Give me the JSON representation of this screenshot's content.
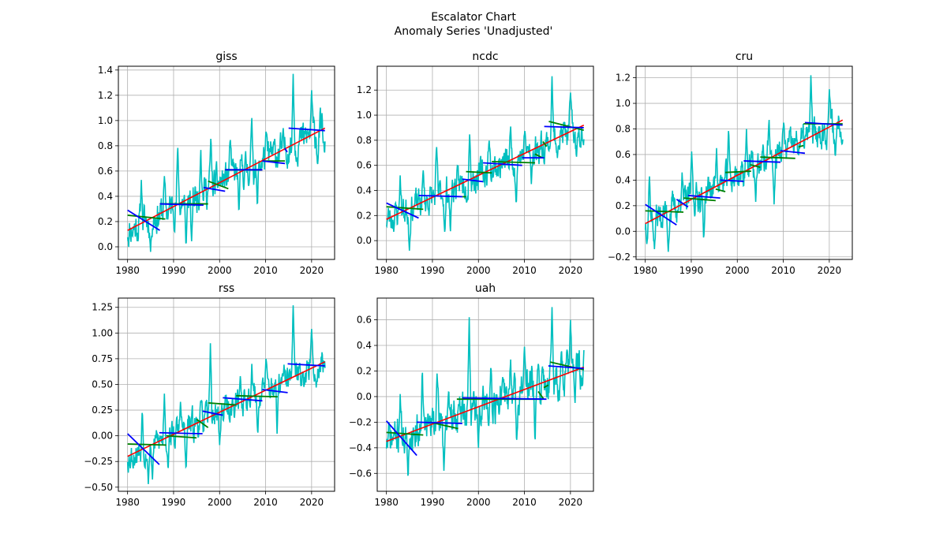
{
  "figure": {
    "title_line1": "Escalator Chart",
    "title_line2": "Anomaly Series 'Unadjusted'"
  },
  "chart_data": [
    {
      "type": "line",
      "title": "giss",
      "xlabel": "",
      "ylabel": "",
      "xlim": [
        1978,
        2025
      ],
      "ylim": [
        -0.1,
        1.43
      ],
      "xticks": [
        1980,
        1990,
        2000,
        2010,
        2020
      ],
      "yticks": [
        0.0,
        0.2,
        0.4,
        0.6,
        0.8,
        1.0,
        1.2,
        1.4
      ],
      "ytick_labels": [
        "0.0",
        "0.2",
        "0.4",
        "0.6",
        "0.8",
        "1.0",
        "1.2",
        "1.4"
      ],
      "grid": true,
      "colors": {
        "anomaly": "#00bfbf",
        "trend": "#ff0000",
        "step_blue": "#0000ff",
        "step_green": "#008000"
      },
      "anomaly": {
        "start": 1980.0,
        "end": 2022.9,
        "trend_start": 0.13,
        "trend_end": 0.94,
        "spread": 0.13,
        "seed": 11,
        "peaks": [
          [
            1983.0,
            0.53
          ],
          [
            1988.0,
            0.56
          ],
          [
            1990.9,
            0.8
          ],
          [
            1995.9,
            0.79
          ],
          [
            1998.1,
            0.87
          ],
          [
            2002.3,
            0.88
          ],
          [
            2007.0,
            1.02
          ],
          [
            2010.1,
            0.92
          ],
          [
            2016.0,
            1.37
          ],
          [
            2020.0,
            1.24
          ]
        ],
        "troughs": [
          [
            1985.0,
            -0.04
          ],
          [
            1992.7,
            -0.01
          ],
          [
            1993.9,
            0.02
          ],
          [
            2008.2,
            0.3
          ],
          [
            2004.2,
            0.26
          ],
          [
            2021.3,
            0.64
          ],
          [
            2022.8,
            0.72
          ]
        ]
      },
      "trend": [
        [
          1980.0,
          0.13
        ],
        [
          2022.9,
          0.94
        ]
      ],
      "blue_segments": [
        [
          [
            1980.0,
            0.29
          ],
          [
            1987.0,
            0.13
          ]
        ],
        [
          [
            1987.0,
            0.34
          ],
          [
            1996.5,
            0.33
          ]
        ],
        [
          [
            1996.5,
            0.47
          ],
          [
            2001.2,
            0.44
          ]
        ],
        [
          [
            2001.2,
            0.61
          ],
          [
            2009.3,
            0.61
          ]
        ],
        [
          [
            2009.3,
            0.68
          ],
          [
            2014.2,
            0.66
          ]
        ],
        [
          [
            2014.2,
            0.78
          ],
          [
            2014.7,
            0.75
          ]
        ],
        [
          [
            2015.0,
            0.94
          ],
          [
            2022.9,
            0.92
          ]
        ]
      ],
      "green_segments": [
        [
          [
            1980.0,
            0.25
          ],
          [
            1988.2,
            0.22
          ]
        ],
        [
          [
            1987.0,
            0.34
          ],
          [
            1997.5,
            0.34
          ]
        ],
        [
          [
            1997.5,
            0.52
          ],
          [
            2001.9,
            0.46
          ]
        ],
        [
          [
            2001.2,
            0.61
          ],
          [
            2009.3,
            0.61
          ]
        ],
        [
          [
            2009.3,
            0.68
          ],
          [
            2014.2,
            0.68
          ]
        ]
      ]
    },
    {
      "type": "line",
      "title": "ncdc",
      "xlabel": "",
      "ylabel": "",
      "xlim": [
        1978,
        2025
      ],
      "ylim": [
        -0.15,
        1.39
      ],
      "xticks": [
        1980,
        1990,
        2000,
        2010,
        2020
      ],
      "yticks": [
        0.0,
        0.2,
        0.4,
        0.6,
        0.8,
        1.0,
        1.2
      ],
      "ytick_labels": [
        "0.0",
        "0.2",
        "0.4",
        "0.6",
        "0.8",
        "1.0",
        "1.2"
      ],
      "grid": true,
      "colors": {
        "anomaly": "#00bfbf",
        "trend": "#ff0000",
        "step_blue": "#0000ff",
        "step_green": "#008000"
      },
      "anomaly": {
        "start": 1980.0,
        "end": 2022.9,
        "trend_start": 0.17,
        "trend_end": 0.92,
        "spread": 0.12,
        "seed": 23,
        "peaks": [
          [
            1983.0,
            0.52
          ],
          [
            1988.0,
            0.56
          ],
          [
            1990.9,
            0.76
          ],
          [
            1998.1,
            0.87
          ],
          [
            2002.3,
            0.82
          ],
          [
            2007.0,
            0.91
          ],
          [
            2010.1,
            0.88
          ],
          [
            2016.0,
            1.31
          ],
          [
            2020.0,
            1.18
          ]
        ],
        "troughs": [
          [
            1985.0,
            -0.08
          ],
          [
            1992.7,
            0.04
          ],
          [
            1993.9,
            0.06
          ],
          [
            2008.2,
            0.27
          ],
          [
            2011.5,
            0.45
          ],
          [
            2021.3,
            0.64
          ],
          [
            2022.8,
            0.75
          ]
        ]
      },
      "trend": [
        [
          1980.0,
          0.17
        ],
        [
          2022.9,
          0.92
        ]
      ],
      "blue_segments": [
        [
          [
            1980.0,
            0.3
          ],
          [
            1987.0,
            0.18
          ]
        ],
        [
          [
            1987.0,
            0.36
          ],
          [
            1996.5,
            0.35
          ]
        ],
        [
          [
            1996.5,
            0.49
          ],
          [
            2001.0,
            0.47
          ]
        ],
        [
          [
            2001.0,
            0.62
          ],
          [
            2009.5,
            0.6
          ]
        ],
        [
          [
            2009.5,
            0.66
          ],
          [
            2014.3,
            0.66
          ]
        ],
        [
          [
            2014.3,
            0.91
          ],
          [
            2022.9,
            0.9
          ]
        ]
      ],
      "green_segments": [
        [
          [
            1980.0,
            0.27
          ],
          [
            1988.0,
            0.25
          ]
        ],
        [
          [
            1996.5,
            0.35
          ],
          [
            1997.3,
            0.35
          ]
        ],
        [
          [
            1997.3,
            0.55
          ],
          [
            2002.9,
            0.54
          ]
        ],
        [
          [
            2002.9,
            0.63
          ],
          [
            2012.3,
            0.62
          ]
        ],
        [
          [
            2012.3,
            0.69
          ],
          [
            2013.9,
            0.66
          ]
        ],
        [
          [
            2014.0,
            0.79
          ],
          [
            2014.8,
            0.75
          ]
        ],
        [
          [
            2015.3,
            0.95
          ],
          [
            2022.9,
            0.88
          ]
        ]
      ]
    },
    {
      "type": "line",
      "title": "cru",
      "xlabel": "",
      "ylabel": "",
      "xlim": [
        1978,
        2025
      ],
      "ylim": [
        -0.22,
        1.29
      ],
      "xticks": [
        1980,
        1990,
        2000,
        2010,
        2020
      ],
      "yticks": [
        -0.2,
        0.0,
        0.2,
        0.4,
        0.6,
        0.8,
        1.0,
        1.2
      ],
      "ytick_labels": [
        "−0.2",
        "0.0",
        "0.2",
        "0.4",
        "0.6",
        "0.8",
        "1.0",
        "1.2"
      ],
      "grid": true,
      "colors": {
        "anomaly": "#00bfbf",
        "trend": "#ff0000",
        "step_blue": "#0000ff",
        "step_green": "#008000"
      },
      "anomaly": {
        "start": 1980.0,
        "end": 2022.9,
        "trend_start": 0.06,
        "trend_end": 0.87,
        "spread": 0.12,
        "seed": 37,
        "peaks": [
          [
            1980.9,
            0.45
          ],
          [
            1988.0,
            0.46
          ],
          [
            1990.1,
            0.64
          ],
          [
            1995.5,
            0.65
          ],
          [
            1998.1,
            0.8
          ],
          [
            2002.0,
            0.8
          ],
          [
            2006.9,
            0.89
          ],
          [
            2010.1,
            0.86
          ],
          [
            2016.0,
            1.22
          ],
          [
            2020.0,
            1.11
          ]
        ],
        "troughs": [
          [
            1982.0,
            -0.14
          ],
          [
            1985.0,
            -0.16
          ],
          [
            1992.7,
            -0.09
          ],
          [
            2004.0,
            0.23
          ],
          [
            2008.0,
            0.21
          ],
          [
            2021.3,
            0.56
          ],
          [
            2022.8,
            0.68
          ]
        ]
      },
      "trend": [
        [
          1980.0,
          0.06
        ],
        [
          2022.9,
          0.87
        ]
      ],
      "blue_segments": [
        [
          [
            1980.0,
            0.21
          ],
          [
            1986.8,
            0.05
          ]
        ],
        [
          [
            1986.8,
            0.25
          ],
          [
            1989.3,
            0.19
          ]
        ],
        [
          [
            1989.3,
            0.28
          ],
          [
            1996.3,
            0.26
          ]
        ],
        [
          [
            1996.3,
            0.4
          ],
          [
            2001.4,
            0.39
          ]
        ],
        [
          [
            2001.4,
            0.55
          ],
          [
            2009.4,
            0.54
          ]
        ],
        [
          [
            2009.4,
            0.63
          ],
          [
            2014.7,
            0.61
          ]
        ],
        [
          [
            2014.7,
            0.85
          ],
          [
            2022.9,
            0.83
          ]
        ]
      ],
      "green_segments": [
        [
          [
            1980.0,
            0.16
          ],
          [
            1988.3,
            0.15
          ]
        ],
        [
          [
            1988.3,
            0.26
          ],
          [
            1995.3,
            0.24
          ]
        ],
        [
          [
            1995.3,
            0.33
          ],
          [
            1997.4,
            0.31
          ]
        ],
        [
          [
            1997.4,
            0.46
          ],
          [
            2003.0,
            0.47
          ]
        ],
        [
          [
            2002.8,
            0.52
          ],
          [
            2005.0,
            0.5
          ]
        ],
        [
          [
            2005.0,
            0.58
          ],
          [
            2012.6,
            0.57
          ]
        ],
        [
          [
            2013.3,
            0.66
          ],
          [
            2014.4,
            0.67
          ]
        ],
        [
          [
            2014.4,
            0.84
          ],
          [
            2022.9,
            0.84
          ]
        ]
      ]
    },
    {
      "type": "line",
      "title": "rss",
      "xlabel": "",
      "ylabel": "",
      "xlim": [
        1978,
        2025
      ],
      "ylim": [
        -0.54,
        1.34
      ],
      "xticks": [
        1980,
        1990,
        2000,
        2010,
        2020
      ],
      "yticks": [
        -0.5,
        -0.25,
        0.0,
        0.25,
        0.5,
        0.75,
        1.0,
        1.25
      ],
      "ytick_labels": [
        "−0.50",
        "−0.25",
        "0.00",
        "0.25",
        "0.50",
        "0.75",
        "1.00",
        "1.25"
      ],
      "grid": true,
      "colors": {
        "anomaly": "#00bfbf",
        "trend": "#ff0000",
        "step_blue": "#0000ff",
        "step_green": "#008000"
      },
      "anomaly": {
        "start": 1980.0,
        "end": 2022.9,
        "trend_start": -0.2,
        "trend_end": 0.72,
        "spread": 0.14,
        "seed": 53,
        "peaks": [
          [
            1983.2,
            0.26
          ],
          [
            1988.0,
            0.41
          ],
          [
            1991.5,
            0.33
          ],
          [
            1995.9,
            0.35
          ],
          [
            1998.0,
            0.9
          ],
          [
            2004.5,
            0.58
          ],
          [
            2007.0,
            0.7
          ],
          [
            2010.1,
            0.76
          ],
          [
            2016.0,
            1.27
          ],
          [
            2020.0,
            1.04
          ]
        ],
        "troughs": [
          [
            1984.5,
            -0.47
          ],
          [
            1985.4,
            -0.44
          ],
          [
            1988.8,
            -0.33
          ],
          [
            1992.7,
            -0.35
          ],
          [
            2000.0,
            -0.09
          ],
          [
            2008.3,
            0.0
          ],
          [
            2012.5,
            0.02
          ],
          [
            2021.0,
            0.47
          ]
        ]
      },
      "trend": [
        [
          1980.0,
          -0.2
        ],
        [
          2022.9,
          0.72
        ]
      ],
      "blue_segments": [
        [
          [
            1980.0,
            0.02
          ],
          [
            1986.9,
            -0.28
          ]
        ],
        [
          [
            1986.9,
            0.03
          ],
          [
            1996.3,
            0.02
          ]
        ],
        [
          [
            1996.3,
            0.24
          ],
          [
            2000.7,
            0.2
          ]
        ],
        [
          [
            2000.7,
            0.37
          ],
          [
            2009.3,
            0.34
          ]
        ],
        [
          [
            2009.3,
            0.45
          ],
          [
            2014.8,
            0.42
          ]
        ],
        [
          [
            2014.8,
            0.7
          ],
          [
            2022.9,
            0.68
          ]
        ]
      ],
      "green_segments": [
        [
          [
            1980.0,
            -0.08
          ],
          [
            1988.4,
            -0.09
          ]
        ],
        [
          [
            1988.4,
            0.0
          ],
          [
            1995.0,
            -0.02
          ]
        ],
        [
          [
            1995.0,
            0.16
          ],
          [
            1997.5,
            0.08
          ]
        ],
        [
          [
            1997.5,
            0.32
          ],
          [
            2003.6,
            0.3
          ]
        ],
        [
          [
            2003.6,
            0.39
          ],
          [
            2012.6,
            0.38
          ]
        ]
      ]
    },
    {
      "type": "line",
      "title": "uah",
      "xlabel": "",
      "ylabel": "",
      "xlim": [
        1978,
        2025
      ],
      "ylim": [
        -0.74,
        0.77
      ],
      "xticks": [
        1980,
        1990,
        2000,
        2010,
        2020
      ],
      "yticks": [
        -0.6,
        -0.4,
        -0.2,
        0.0,
        0.2,
        0.4,
        0.6
      ],
      "ytick_labels": [
        "−0.6",
        "−0.4",
        "−0.2",
        "0.0",
        "0.2",
        "0.4",
        "0.6"
      ],
      "grid": true,
      "colors": {
        "anomaly": "#00bfbf",
        "trend": "#ff0000",
        "step_blue": "#0000ff",
        "step_green": "#008000"
      },
      "anomaly": {
        "start": 1980.0,
        "end": 2022.9,
        "trend_start": -0.35,
        "trend_end": 0.23,
        "spread": 0.15,
        "seed": 71,
        "peaks": [
          [
            1983.0,
            0.02
          ],
          [
            1987.8,
            0.25
          ],
          [
            1991.0,
            0.18
          ],
          [
            1998.0,
            0.62
          ],
          [
            2002.7,
            0.26
          ],
          [
            2007.0,
            0.29
          ],
          [
            2010.0,
            0.39
          ],
          [
            2016.0,
            0.7
          ],
          [
            2020.0,
            0.6
          ]
        ],
        "troughs": [
          [
            1984.7,
            -0.67
          ],
          [
            1992.5,
            -0.58
          ],
          [
            2000.0,
            -0.4
          ],
          [
            2008.3,
            -0.37
          ],
          [
            2012.3,
            -0.39
          ],
          [
            2021.0,
            -0.05
          ]
        ]
      },
      "trend": [
        [
          1980.0,
          -0.35
        ],
        [
          2022.9,
          0.23
        ]
      ],
      "blue_segments": [
        [
          [
            1980.0,
            -0.19
          ],
          [
            1986.6,
            -0.46
          ]
        ],
        [
          [
            1986.6,
            -0.2
          ],
          [
            1996.5,
            -0.21
          ]
        ],
        [
          [
            1996.5,
            -0.01
          ],
          [
            2014.8,
            -0.02
          ]
        ],
        [
          [
            2015.2,
            0.24
          ],
          [
            2022.9,
            0.22
          ]
        ]
      ],
      "green_segments": [
        [
          [
            1980.0,
            -0.28
          ],
          [
            1988.0,
            -0.3
          ]
        ],
        [
          [
            1989.5,
            -0.2
          ],
          [
            1995.6,
            -0.25
          ]
        ],
        [
          [
            1995.3,
            -0.02
          ],
          [
            2014.0,
            -0.02
          ]
        ],
        [
          [
            2013.0,
            0.04
          ],
          [
            2014.2,
            -0.02
          ]
        ],
        [
          [
            2014.2,
            0.07
          ],
          [
            2015.2,
            0.09
          ]
        ],
        [
          [
            2015.6,
            0.27
          ],
          [
            2022.9,
            0.21
          ]
        ]
      ]
    }
  ]
}
